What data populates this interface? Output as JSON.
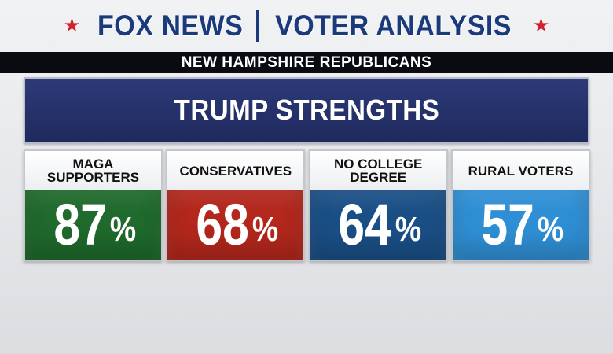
{
  "header": {
    "brand": "FOX NEWS",
    "topic": "VOTER ANALYSIS",
    "star_icon": "star-icon",
    "star_color": "#d2222f"
  },
  "subheader": "NEW HAMPSHIRE REPUBLICANS",
  "chart_data": {
    "type": "table",
    "title": "TRUMP STRENGTHS",
    "unit": "%",
    "categories": [
      "MAGA SUPPORTERS",
      "CONSERVATIVES",
      "NO COLLEGE DEGREE",
      "RURAL VOTERS"
    ],
    "label_lines": [
      [
        "MAGA",
        "SUPPORTERS"
      ],
      [
        "CONSERVATIVES"
      ],
      [
        "NO COLLEGE",
        "DEGREE"
      ],
      [
        "RURAL VOTERS"
      ]
    ],
    "values": [
      87,
      68,
      64,
      57
    ],
    "colors": [
      "#1f6a2c",
      "#b3271c",
      "#1a4f86",
      "#2f8fd4"
    ]
  }
}
